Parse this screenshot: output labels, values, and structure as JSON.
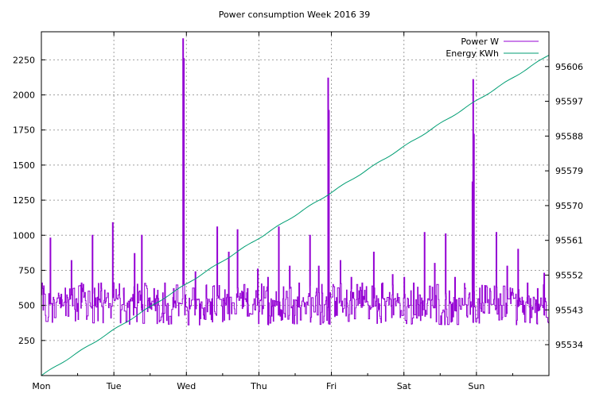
{
  "chart_data": {
    "type": "line",
    "title": "Power consumption Week 2016 39",
    "grid": true,
    "legend_position": "top-right",
    "x_categories": [
      "Mon",
      "Tue",
      "Wed",
      "Thu",
      "Fri",
      "Sat",
      "Sun"
    ],
    "xlim_days": [
      0,
      7
    ],
    "y_left": {
      "range": [
        0,
        2450
      ],
      "ticks": [
        250,
        500,
        750,
        1000,
        1250,
        1500,
        1750,
        2000,
        2250
      ]
    },
    "y_right": {
      "range": [
        95526,
        95615
      ],
      "ticks": [
        95534,
        95543,
        95552,
        95561,
        95570,
        95579,
        95588,
        95597,
        95606
      ]
    },
    "series": [
      {
        "name": "Power W",
        "axis": "left",
        "color": "#9400d3",
        "baseline": 500,
        "spikes": [
          {
            "x": 0.12,
            "y": 980
          },
          {
            "x": 0.27,
            "y": 580
          },
          {
            "x": 0.41,
            "y": 820
          },
          {
            "x": 0.55,
            "y": 660
          },
          {
            "x": 0.7,
            "y": 1000
          },
          {
            "x": 0.82,
            "y": 660
          },
          {
            "x": 0.98,
            "y": 1090
          },
          {
            "x": 1.13,
            "y": 620
          },
          {
            "x": 1.28,
            "y": 870
          },
          {
            "x": 1.38,
            "y": 1000
          },
          {
            "x": 1.55,
            "y": 620
          },
          {
            "x": 1.7,
            "y": 660
          },
          {
            "x": 1.82,
            "y": 620
          },
          {
            "x": 1.95,
            "y": 2400
          },
          {
            "x": 1.96,
            "y": 2260
          },
          {
            "x": 2.12,
            "y": 740
          },
          {
            "x": 2.27,
            "y": 560
          },
          {
            "x": 2.42,
            "y": 1060
          },
          {
            "x": 2.58,
            "y": 880
          },
          {
            "x": 2.7,
            "y": 1040
          },
          {
            "x": 2.84,
            "y": 620
          },
          {
            "x": 2.98,
            "y": 760
          },
          {
            "x": 3.12,
            "y": 700
          },
          {
            "x": 3.27,
            "y": 1060
          },
          {
            "x": 3.42,
            "y": 780
          },
          {
            "x": 3.55,
            "y": 660
          },
          {
            "x": 3.7,
            "y": 1000
          },
          {
            "x": 3.82,
            "y": 780
          },
          {
            "x": 3.95,
            "y": 2120
          },
          {
            "x": 3.96,
            "y": 1890
          },
          {
            "x": 4.12,
            "y": 820
          },
          {
            "x": 4.27,
            "y": 700
          },
          {
            "x": 4.42,
            "y": 660
          },
          {
            "x": 4.58,
            "y": 880
          },
          {
            "x": 4.7,
            "y": 660
          },
          {
            "x": 4.84,
            "y": 720
          },
          {
            "x": 5.0,
            "y": 700
          },
          {
            "x": 5.13,
            "y": 660
          },
          {
            "x": 5.28,
            "y": 1020
          },
          {
            "x": 5.42,
            "y": 800
          },
          {
            "x": 5.57,
            "y": 1010
          },
          {
            "x": 5.7,
            "y": 700
          },
          {
            "x": 5.84,
            "y": 620
          },
          {
            "x": 5.95,
            "y": 2110
          },
          {
            "x": 5.96,
            "y": 1720
          },
          {
            "x": 5.94,
            "y": 1380
          },
          {
            "x": 6.12,
            "y": 620
          },
          {
            "x": 6.27,
            "y": 1020
          },
          {
            "x": 6.42,
            "y": 780
          },
          {
            "x": 6.57,
            "y": 900
          },
          {
            "x": 6.7,
            "y": 660
          },
          {
            "x": 6.84,
            "y": 620
          },
          {
            "x": 6.93,
            "y": 730
          }
        ]
      },
      {
        "name": "Energy KWh",
        "axis": "right",
        "color": "#009e73",
        "start": [
          0,
          95526
        ],
        "end": [
          7,
          95609
        ]
      }
    ]
  }
}
